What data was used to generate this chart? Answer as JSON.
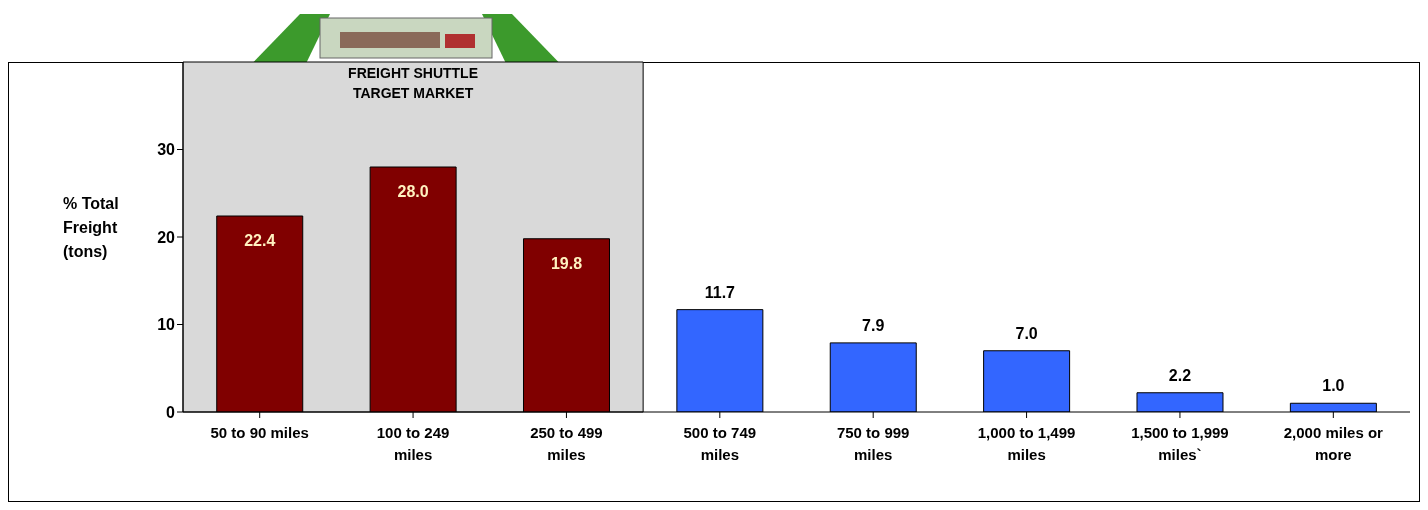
{
  "chart_data": {
    "type": "bar",
    "ylabel": "% Total Freight (tons)",
    "categories": [
      "50 to 90 miles",
      "100 to 249 miles",
      "250 to 499 miles",
      "500 to 749 miles",
      "750 to 999 miles",
      "1,000 to 1,499 miles",
      "1,500 to 1,999 miles`",
      "2,000 miles or more"
    ],
    "values": [
      22.4,
      28.0,
      19.8,
      11.7,
      7.9,
      7.0,
      2.2,
      1.0
    ],
    "colors": [
      "#800000",
      "#800000",
      "#800000",
      "#3366ff",
      "#3366ff",
      "#3366ff",
      "#3366ff",
      "#3366ff"
    ],
    "value_labels": [
      "22.4",
      "28.0",
      "19.8",
      "11.7",
      "7.9",
      "7.0",
      "2.2",
      "1.0"
    ],
    "bands": [
      {
        "axis": "x",
        "from": "50 to 90 miles",
        "to": "250 to 499 miles",
        "label": "FREIGHT SHUTTLE TARGET MARKET",
        "color": "#d9d9d9"
      }
    ],
    "ylim": [
      0,
      40
    ],
    "yticks": [
      0,
      10,
      20,
      30
    ]
  }
}
